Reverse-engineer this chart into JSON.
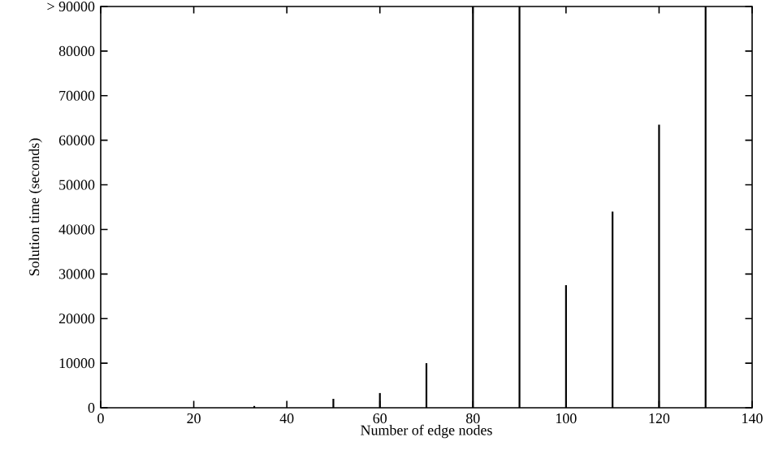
{
  "chart_data": {
    "type": "bar",
    "xlabel": "Number of edge nodes",
    "ylabel": "Solution time (seconds)",
    "x": [
      33,
      50,
      60,
      70,
      80,
      90,
      100,
      110,
      120,
      130
    ],
    "values": [
      400,
      2000,
      3300,
      10000,
      90000,
      90000,
      27500,
      44000,
      63500,
      90000
    ],
    "color": "#000000",
    "xlim": [
      0,
      140
    ],
    "xticks": [
      0,
      20,
      40,
      60,
      80,
      100,
      120,
      140
    ],
    "ylim": [
      0,
      90000
    ],
    "yticks": [
      0,
      10000,
      20000,
      30000,
      40000,
      50000,
      60000,
      70000,
      80000,
      {
        "value": 90000,
        "label": "> 90000"
      }
    ],
    "grid": false
  }
}
